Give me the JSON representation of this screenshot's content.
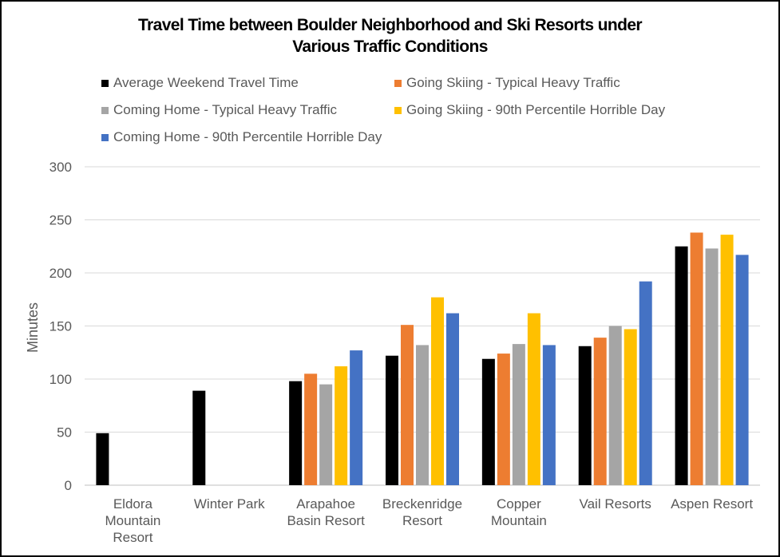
{
  "chart_data": {
    "type": "bar",
    "title_lines": [
      "Travel Time between Boulder Neighborhood and Ski Resorts under",
      "Various Traffic Conditions"
    ],
    "xlabel": "",
    "ylabel": "Minutes",
    "ylim": [
      0,
      300
    ],
    "yticks": [
      0,
      50,
      100,
      150,
      200,
      250,
      300
    ],
    "grid": true,
    "legend_position": "top",
    "categories": [
      [
        "Eldora",
        "Mountain",
        "Resort"
      ],
      [
        "Winter Park"
      ],
      [
        "Arapahoe",
        "Basin Resort"
      ],
      [
        "Breckenridge",
        "Resort"
      ],
      [
        "Copper",
        "Mountain"
      ],
      [
        "Vail Resorts"
      ],
      [
        "Aspen Resort"
      ]
    ],
    "series": [
      {
        "name": "Average Weekend Travel Time",
        "color": "#000000",
        "values": [
          49,
          89,
          98,
          122,
          119,
          131,
          225
        ]
      },
      {
        "name": "Going Skiing - Typical Heavy Traffic",
        "color": "#ED7D31",
        "values": [
          0,
          0,
          105,
          151,
          124,
          139,
          238
        ]
      },
      {
        "name": "Coming Home - Typical Heavy Traffic",
        "color": "#A5A5A5",
        "values": [
          0,
          0,
          95,
          132,
          133,
          150,
          223
        ]
      },
      {
        "name": "Going Skiing - 90th Percentile Horrible Day",
        "color": "#FFC000",
        "values": [
          0,
          0,
          112,
          177,
          162,
          147,
          236
        ]
      },
      {
        "name": "Coming Home - 90th Percentile Horrible Day",
        "color": "#4472C4",
        "values": [
          0,
          0,
          127,
          162,
          132,
          192,
          217
        ]
      }
    ]
  }
}
